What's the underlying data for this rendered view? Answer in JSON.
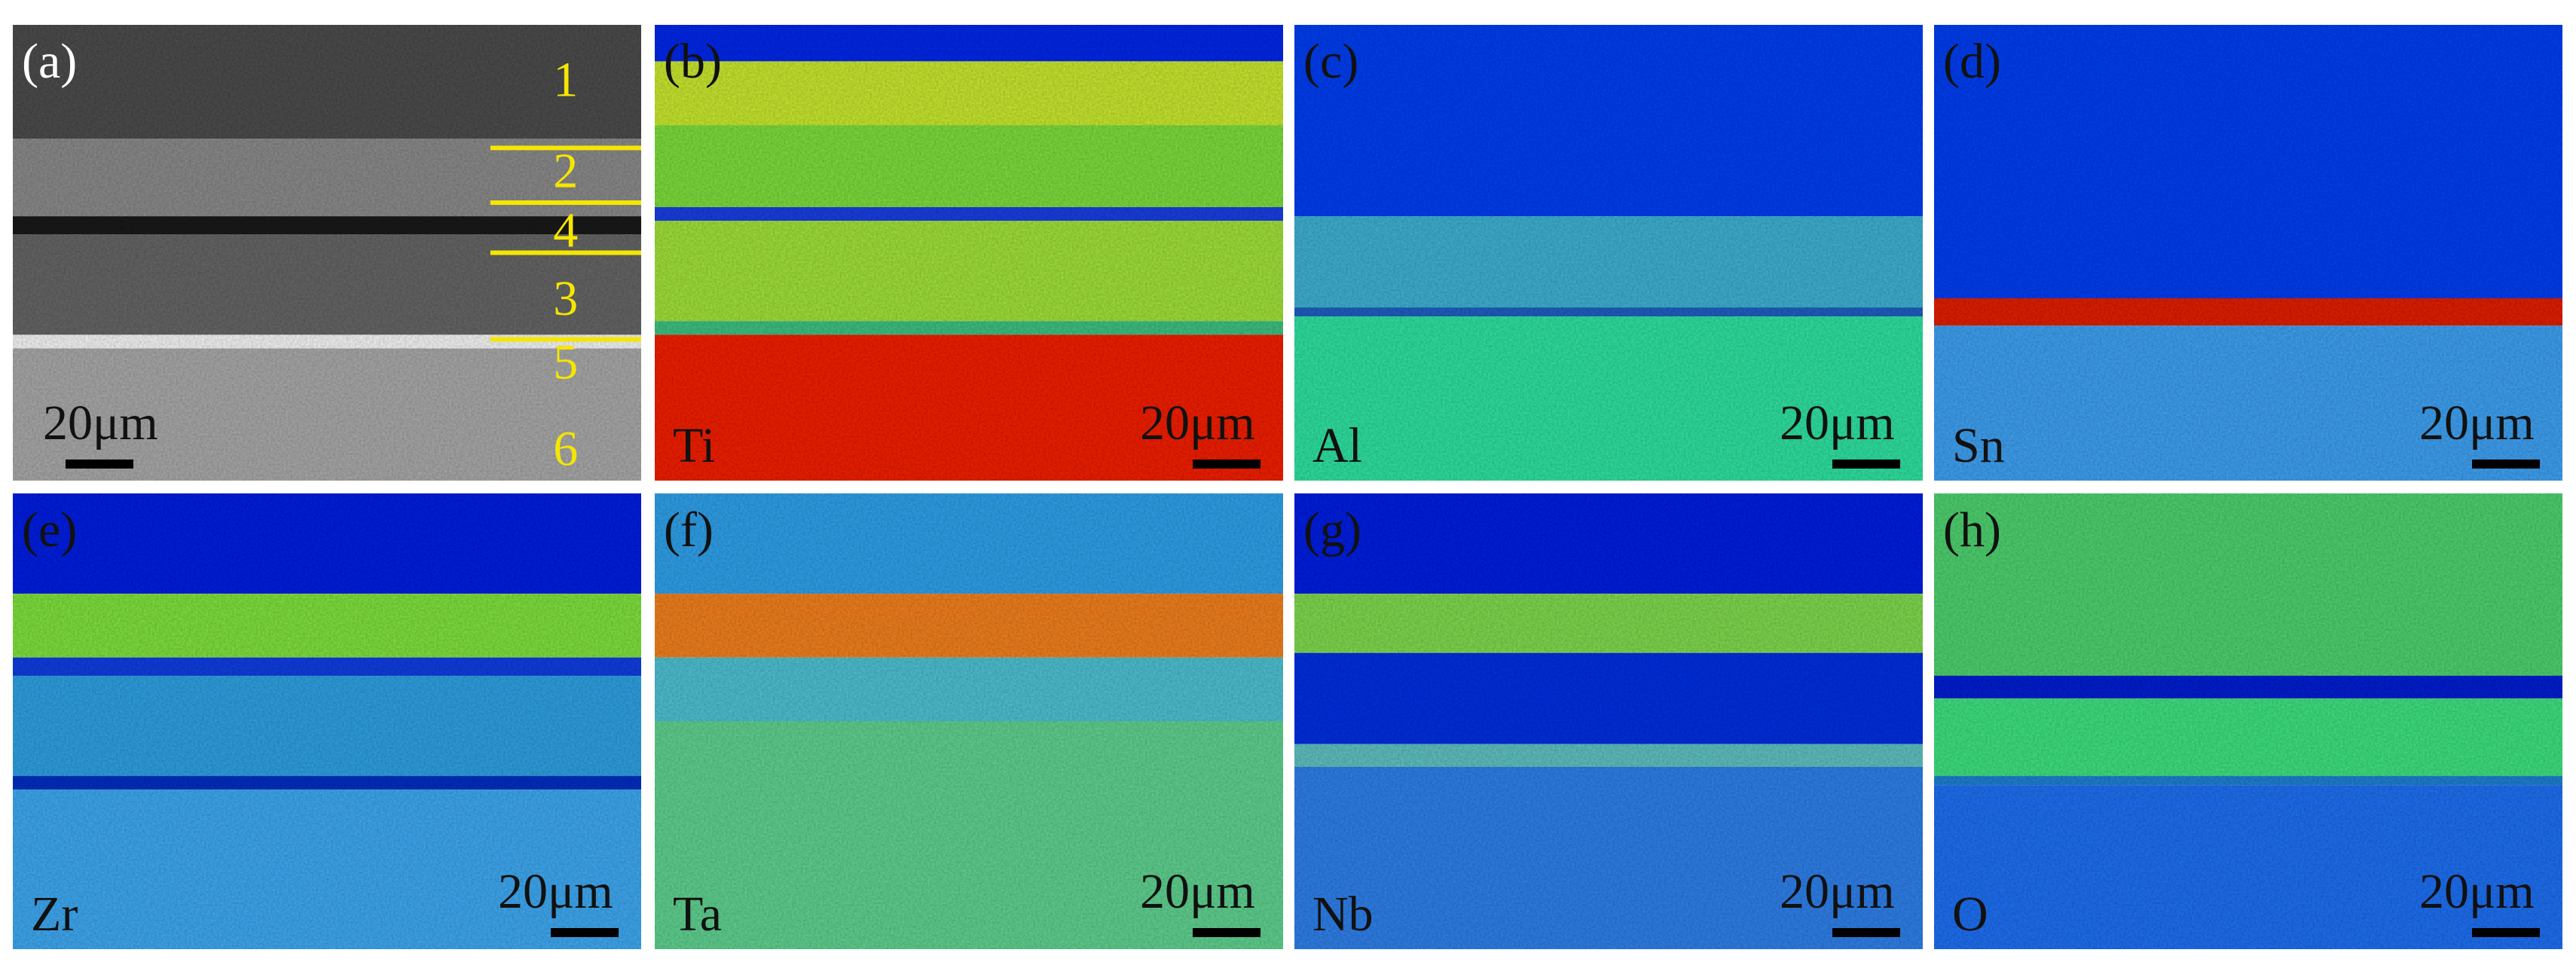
{
  "figure": {
    "panels": [
      {
        "label": "(a)",
        "scale_bar": "20μm",
        "layers": [
          "1",
          "2",
          "4",
          "3",
          "5",
          "6"
        ]
      },
      {
        "label": "(b)",
        "element": "Ti",
        "scale_bar": "20μm"
      },
      {
        "label": "(c)",
        "element": "Al",
        "scale_bar": "20μm"
      },
      {
        "label": "(d)",
        "element": "Sn",
        "scale_bar": "20μm"
      },
      {
        "label": "(e)",
        "element": "Zr",
        "scale_bar": "20μm"
      },
      {
        "label": "(f)",
        "element": "Ta",
        "scale_bar": "20μm"
      },
      {
        "label": "(g)",
        "element": "Nb",
        "scale_bar": "20μm"
      },
      {
        "label": "(h)",
        "element": "O",
        "scale_bar": "20μm"
      }
    ]
  }
}
